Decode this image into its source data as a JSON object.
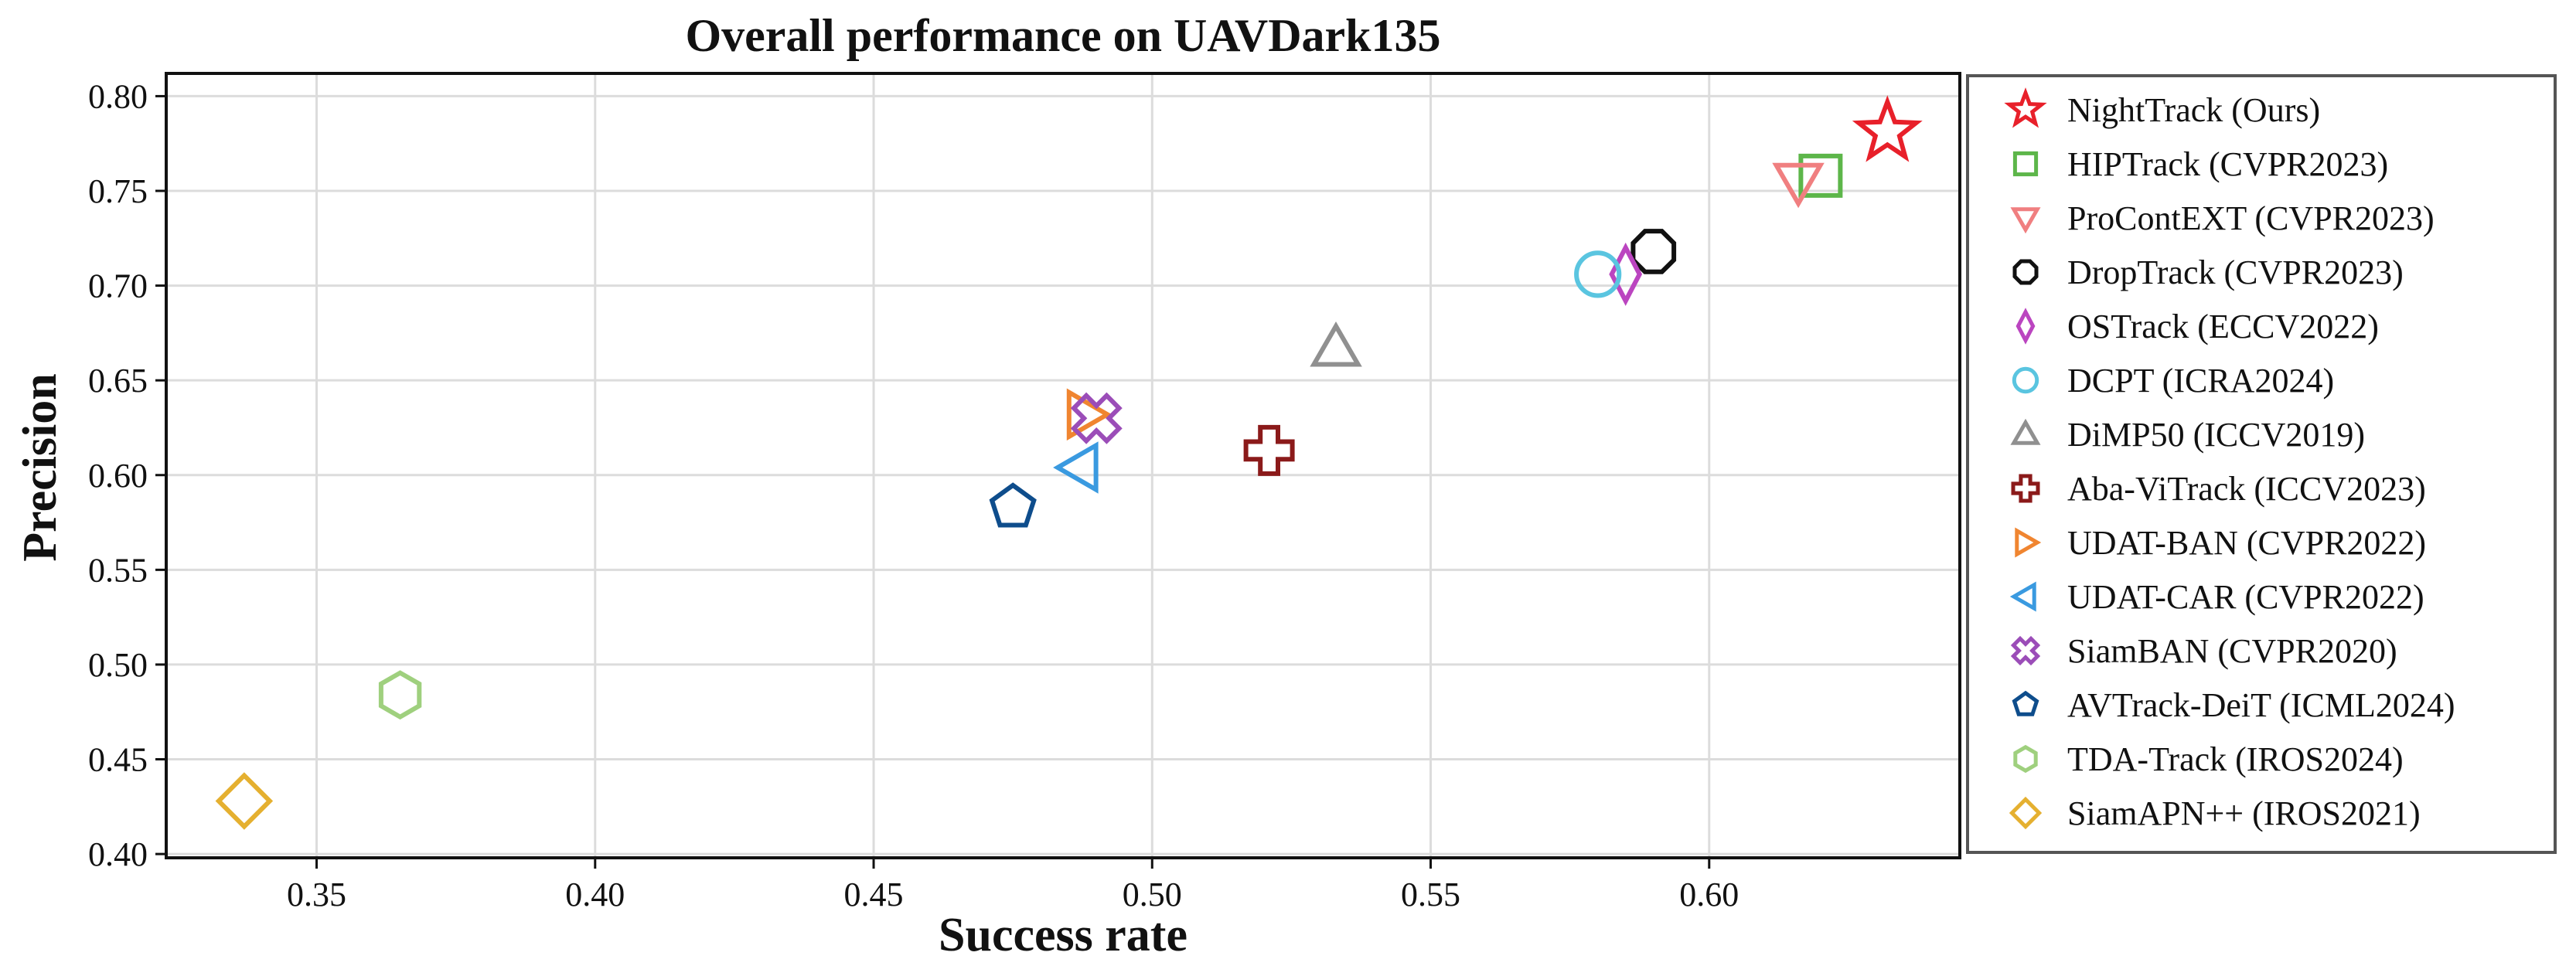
{
  "chart_data": {
    "type": "scatter",
    "title": "Overall performance on UAVDark135",
    "xlabel": "Success rate",
    "ylabel": "Precision",
    "xlim": [
      0.323,
      0.645
    ],
    "ylim": [
      0.398,
      0.812
    ],
    "xticks": [
      0.35,
      0.4,
      0.45,
      0.5,
      0.55,
      0.6
    ],
    "yticks": [
      0.4,
      0.45,
      0.5,
      0.55,
      0.6,
      0.65,
      0.7,
      0.75,
      0.8
    ],
    "xtick_labels": [
      "0.35",
      "0.40",
      "0.45",
      "0.50",
      "0.55",
      "0.60"
    ],
    "ytick_labels": [
      "0.40",
      "0.45",
      "0.50",
      "0.55",
      "0.60",
      "0.65",
      "0.70",
      "0.75",
      "0.80"
    ],
    "grid": true,
    "legend_position": "right-outside",
    "series": [
      {
        "name": "NightTrack (Ours)",
        "x": 0.632,
        "y": 0.781,
        "marker": "star",
        "color": "#e8202a"
      },
      {
        "name": "HIPTrack (CVPR2023)",
        "x": 0.62,
        "y": 0.758,
        "marker": "square",
        "color": "#5db64a"
      },
      {
        "name": "ProContEXT (CVPR2023)",
        "x": 0.616,
        "y": 0.755,
        "marker": "triangle-down",
        "color": "#f07f80"
      },
      {
        "name": "DropTrack (CVPR2023)",
        "x": 0.59,
        "y": 0.718,
        "marker": "octagon",
        "color": "#111111"
      },
      {
        "name": "OSTrack (ECCV2022)",
        "x": 0.585,
        "y": 0.706,
        "marker": "diamond-thin",
        "color": "#bb45c0"
      },
      {
        "name": "DCPT (ICRA2024)",
        "x": 0.58,
        "y": 0.706,
        "marker": "circle",
        "color": "#5ac5e0"
      },
      {
        "name": "DiMP50 (ICCV2019)",
        "x": 0.533,
        "y": 0.667,
        "marker": "triangle-up",
        "color": "#909090"
      },
      {
        "name": "Aba-ViTrack (ICCV2023)",
        "x": 0.521,
        "y": 0.613,
        "marker": "plus",
        "color": "#8b1a1a"
      },
      {
        "name": "UDAT-BAN (CVPR2022)",
        "x": 0.488,
        "y": 0.632,
        "marker": "triangle-right",
        "color": "#f08530"
      },
      {
        "name": "UDAT-CAR (CVPR2022)",
        "x": 0.487,
        "y": 0.604,
        "marker": "triangle-left",
        "color": "#3a9ae0"
      },
      {
        "name": "SiamBAN (CVPR2020)",
        "x": 0.49,
        "y": 0.63,
        "marker": "x",
        "color": "#9b4db8"
      },
      {
        "name": "AVTrack-DeiT (ICML2024)",
        "x": 0.475,
        "y": 0.583,
        "marker": "pentagon",
        "color": "#0e4d8c"
      },
      {
        "name": "TDA-Track (IROS2024)",
        "x": 0.365,
        "y": 0.484,
        "marker": "hexagon",
        "color": "#9fd07e"
      },
      {
        "name": "SiamAPN++ (IROS2021)",
        "x": 0.337,
        "y": 0.428,
        "marker": "diamond",
        "color": "#e5b030"
      }
    ]
  }
}
